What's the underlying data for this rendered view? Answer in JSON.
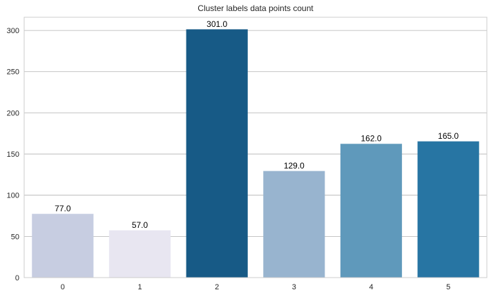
{
  "chart_data": {
    "type": "bar",
    "title": "Cluster labels data points count",
    "xlabel": "",
    "ylabel": "",
    "categories": [
      "0",
      "1",
      "2",
      "3",
      "4",
      "5"
    ],
    "values": [
      77,
      57,
      301,
      129,
      162,
      165
    ],
    "data_labels": [
      "77.0",
      "57.0",
      "301.0",
      "129.0",
      "162.0",
      "165.0"
    ],
    "ylim": [
      0,
      316
    ],
    "yticks": [
      0,
      50,
      100,
      150,
      200,
      250,
      300
    ],
    "grid": "horizontal",
    "legend": "none",
    "colors": [
      "#c7cde1",
      "#e8e6f1",
      "#175a86",
      "#98b4cf",
      "#5f99bb",
      "#2775a3"
    ]
  }
}
